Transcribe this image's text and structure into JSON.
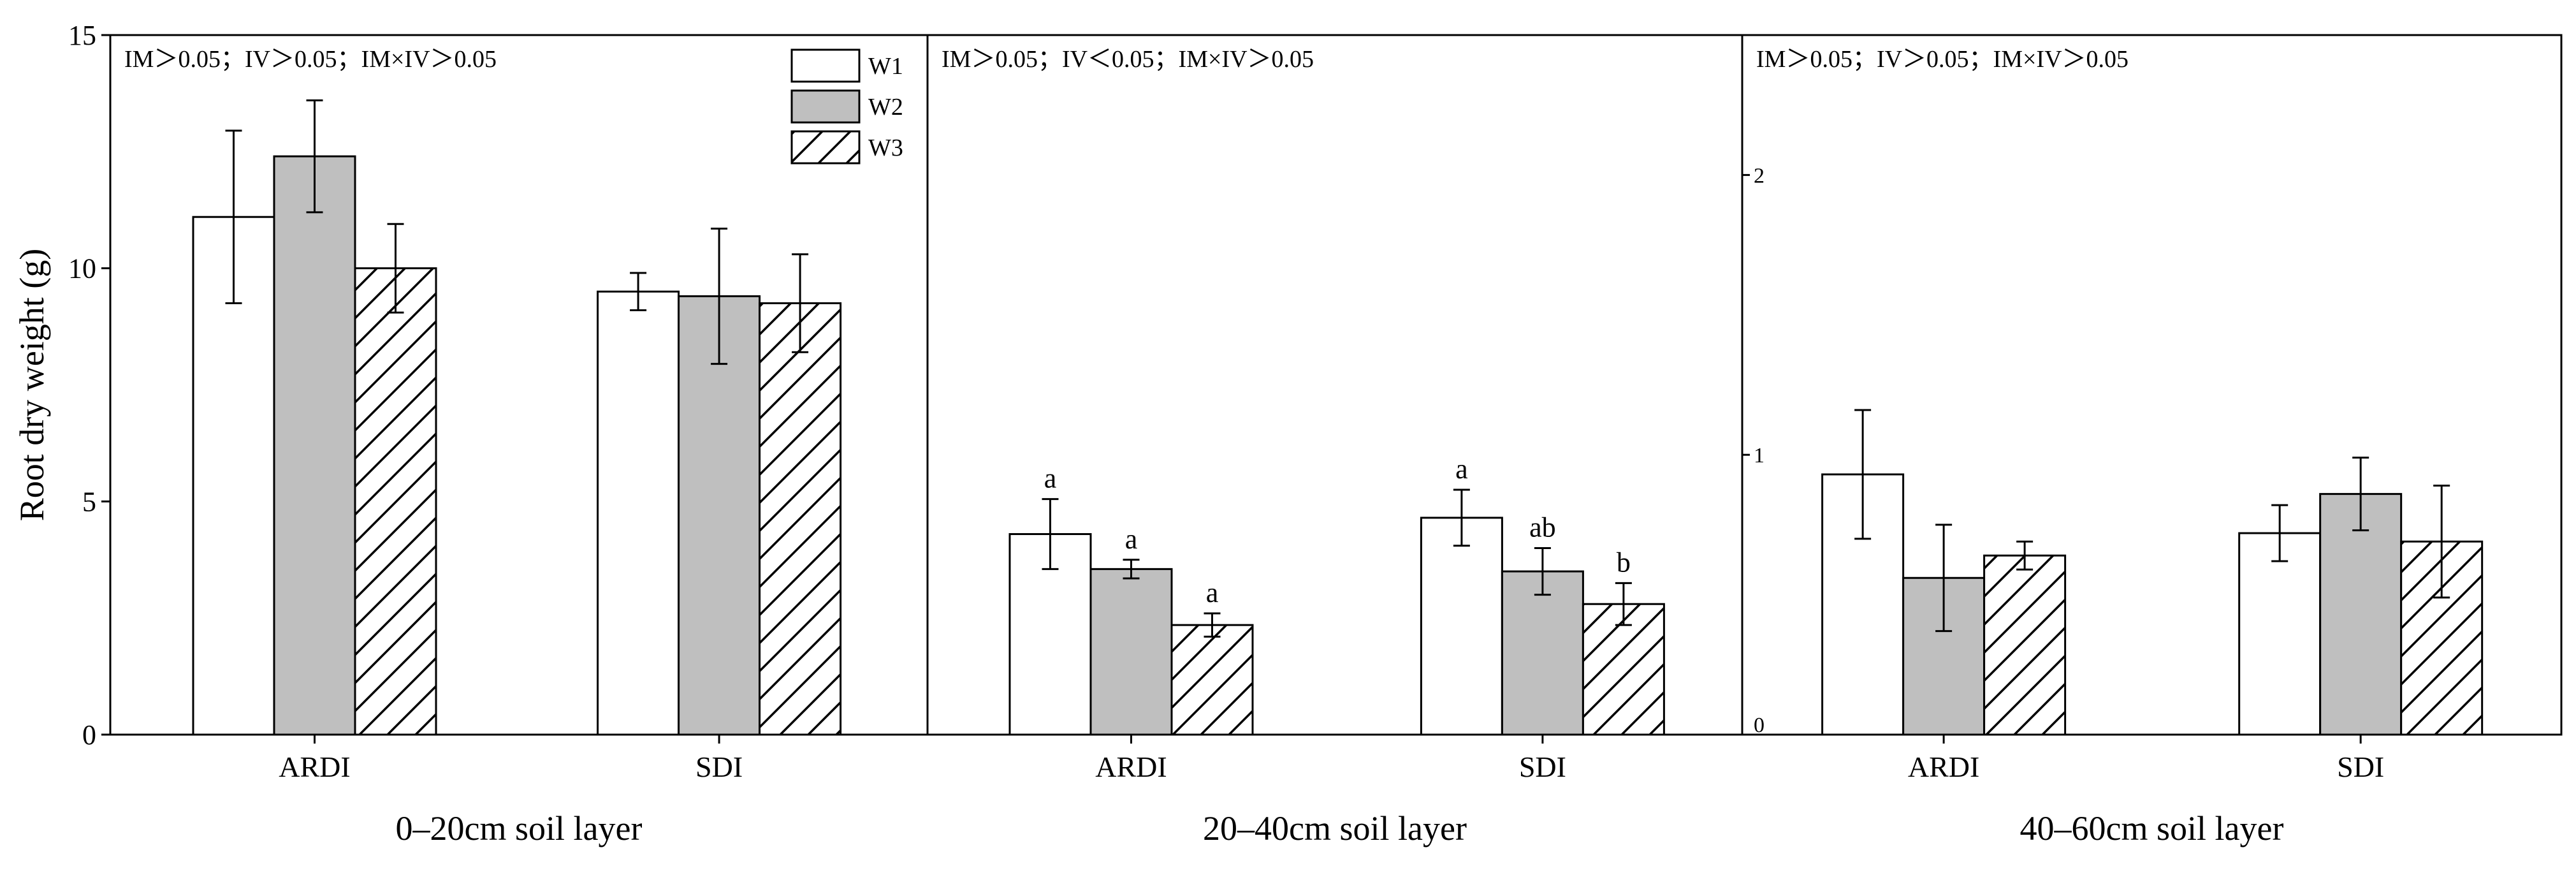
{
  "chart_data": {
    "type": "bar",
    "ylabel": "Root dry weight (g)",
    "legend": {
      "placement": "top-right of first panel",
      "entries": [
        {
          "name": "W1",
          "pattern": "white"
        },
        {
          "name": "W2",
          "pattern": "gray"
        },
        {
          "name": "W3",
          "pattern": "hatched"
        }
      ]
    },
    "colors": {
      "w1": "#ffffff",
      "w2": "#bfbfbf",
      "w3_hatch": "#000000",
      "stroke": "#000000"
    },
    "panels": [
      {
        "title": "0–20cm soil layer",
        "annotation": "IM＞0.05；IV＞0.05；IM×IV＞0.05",
        "ylim": [
          0,
          15
        ],
        "yticks": [
          {
            "value": 0,
            "label": "0"
          },
          {
            "value": 5,
            "label": "5"
          },
          {
            "value": 10,
            "label": "10"
          },
          {
            "value": 15,
            "label": "15"
          }
        ],
        "categories": [
          "ARDI",
          "SDI"
        ],
        "series": [
          {
            "name": "W1",
            "values": [
              11.1,
              9.5
            ],
            "errors": [
              1.85,
              0.4
            ],
            "letters": [
              "",
              ""
            ]
          },
          {
            "name": "W2",
            "values": [
              12.4,
              9.4
            ],
            "errors": [
              1.2,
              1.45
            ],
            "letters": [
              "",
              ""
            ]
          },
          {
            "name": "W3",
            "values": [
              10.0,
              9.25
            ],
            "errors": [
              0.95,
              1.05
            ],
            "letters": [
              "",
              ""
            ]
          }
        ]
      },
      {
        "title": "20–40cm soil layer",
        "annotation": "IM＞0.05；IV＜0.05；IM×IV＞0.05",
        "ylim": [
          0,
          15
        ],
        "yticks": [],
        "categories": [
          "ARDI",
          "SDI"
        ],
        "series": [
          {
            "name": "W1",
            "values": [
              4.3,
              4.65
            ],
            "errors": [
              0.75,
              0.6
            ],
            "letters": [
              "a",
              "a"
            ]
          },
          {
            "name": "W2",
            "values": [
              3.55,
              3.5
            ],
            "errors": [
              0.2,
              0.5
            ],
            "letters": [
              "a",
              "ab"
            ]
          },
          {
            "name": "W3",
            "values": [
              2.35,
              2.8
            ],
            "errors": [
              0.25,
              0.45
            ],
            "letters": [
              "a",
              "b"
            ]
          }
        ]
      },
      {
        "title": "40–60cm soil layer",
        "annotation": "IM＞0.05；IV＞0.05；IM×IV＞0.05",
        "ylim": [
          0,
          2.5
        ],
        "yticks": [
          {
            "value": 0,
            "label": "0"
          },
          {
            "value": 1,
            "label": "1"
          },
          {
            "value": 2,
            "label": "2"
          }
        ],
        "categories": [
          "ARDI",
          "SDI"
        ],
        "series": [
          {
            "name": "W1",
            "values": [
              0.93,
              0.72
            ],
            "errors": [
              0.23,
              0.1
            ],
            "letters": [
              "",
              ""
            ]
          },
          {
            "name": "W2",
            "values": [
              0.56,
              0.86
            ],
            "errors": [
              0.19,
              0.13
            ],
            "letters": [
              "",
              ""
            ]
          },
          {
            "name": "W3",
            "values": [
              0.64,
              0.69
            ],
            "errors": [
              0.05,
              0.2
            ],
            "letters": [
              "",
              ""
            ]
          }
        ]
      }
    ]
  }
}
